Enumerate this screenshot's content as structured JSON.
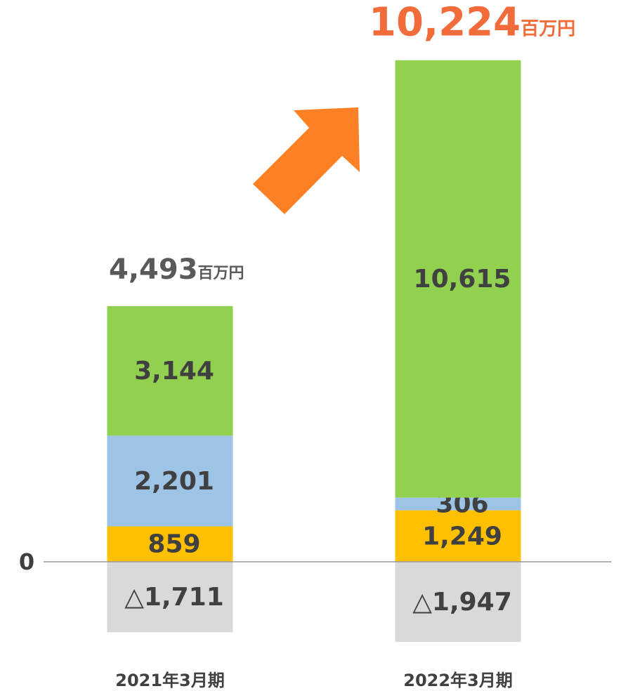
{
  "chart_data": {
    "type": "bar",
    "stacked": true,
    "categories": [
      "2021年3月期",
      "2022年3月期"
    ],
    "series": [
      {
        "color": "#d9d9d9",
        "values": [
          -1711,
          -1947
        ],
        "value_labels": [
          "△1,711",
          "△1,947"
        ]
      },
      {
        "color": "#ffc000",
        "values": [
          859,
          1249
        ],
        "value_labels": [
          "859",
          "1,249"
        ]
      },
      {
        "color": "#9dc3e6",
        "values": [
          2201,
          306
        ],
        "value_labels": [
          "2,201",
          "306"
        ]
      },
      {
        "color": "#92d050",
        "values": [
          3144,
          10615
        ],
        "value_labels": [
          "3,144",
          "10,615"
        ]
      }
    ],
    "totals": [
      4493,
      10224
    ],
    "total_labels": [
      "4,493",
      "10,224"
    ],
    "total_colors": [
      "#595959",
      "#f26b3a"
    ],
    "total_unit": "百万円",
    "ylim": [
      -3000,
      13000
    ],
    "yticks": [
      0
    ]
  }
}
